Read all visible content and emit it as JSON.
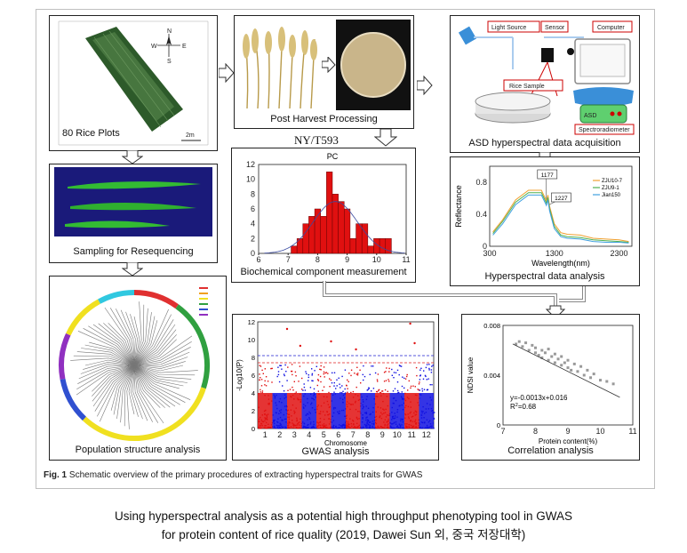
{
  "panels": {
    "rice_plots": "80 Rice Plots",
    "sampling": "Sampling for Resequencing",
    "post_harvest": "Post Harvest Processing",
    "asd": "ASD hyperspectral data acquisition",
    "standard": "NY/T593",
    "biochem": "Biochemical component measurement",
    "hyperspectral": "Hyperspectral data analysis",
    "population": "Population structure analysis",
    "gwas": "GWAS analysis",
    "correlation": "Correlation analysis"
  },
  "asd_labels": {
    "light_source": "Light Source",
    "sensor": "Sensor",
    "computer": "Computer",
    "rice_sample": "Rice Sample",
    "asd": "ASD",
    "spectroradiometer": "Spectroradiometer"
  },
  "map_labels": {
    "scale": "2m",
    "north": "N",
    "south": "S",
    "east": "E",
    "west": "W"
  },
  "figure_caption_bold": "Fig. 1",
  "figure_caption_text": "Schematic overview of the primary procedures of extracting hyperspectral traits for GWAS",
  "caption_line1": "Using hyperspectral analysis as a potential high throughput phenotyping tool in GWAS",
  "caption_line2": "for protein content of rice quality (2019, Dawei Sun 외, 중국 저장대학)",
  "chart_data": [
    {
      "type": "bar",
      "title": "PC",
      "x_ticks": [
        "6",
        "7",
        "8",
        "9",
        "10",
        "11"
      ],
      "y_ticks": [
        "0",
        "2",
        "4",
        "6",
        "8",
        "10",
        "12"
      ],
      "xlim": [
        6,
        11
      ],
      "ylim": [
        0,
        12
      ],
      "bins": [
        {
          "x": 7.2,
          "count": 1
        },
        {
          "x": 7.4,
          "count": 2
        },
        {
          "x": 7.6,
          "count": 4
        },
        {
          "x": 7.8,
          "count": 5
        },
        {
          "x": 8.0,
          "count": 6
        },
        {
          "x": 8.2,
          "count": 5
        },
        {
          "x": 8.4,
          "count": 11
        },
        {
          "x": 8.6,
          "count": 8
        },
        {
          "x": 8.8,
          "count": 7
        },
        {
          "x": 9.0,
          "count": 6
        },
        {
          "x": 9.2,
          "count": 2
        },
        {
          "x": 9.4,
          "count": 4
        },
        {
          "x": 9.6,
          "count": 4
        },
        {
          "x": 9.8,
          "count": 1
        },
        {
          "x": 10.0,
          "count": 2
        },
        {
          "x": 10.2,
          "count": 2
        },
        {
          "x": 10.4,
          "count": 2
        }
      ],
      "bar_color": "#e01010"
    },
    {
      "type": "line",
      "xlabel": "Wavelength(nm)",
      "ylabel": "Reflectance",
      "x_ticks": [
        "300",
        "1300",
        "2300"
      ],
      "y_ticks": [
        "0",
        "0.4",
        "0.8"
      ],
      "xlim": [
        300,
        2500
      ],
      "ylim": [
        0,
        1.0
      ],
      "annotations": [
        "1177",
        "1227"
      ],
      "series": [
        {
          "name": "ZJU10-7",
          "color": "#f0a030",
          "points": [
            [
              350,
              0.18
            ],
            [
              500,
              0.33
            ],
            [
              700,
              0.58
            ],
            [
              900,
              0.7
            ],
            [
              1100,
              0.7
            ],
            [
              1177,
              0.57
            ],
            [
              1200,
              0.64
            ],
            [
              1227,
              0.5
            ],
            [
              1300,
              0.28
            ],
            [
              1400,
              0.17
            ],
            [
              1500,
              0.15
            ],
            [
              1700,
              0.14
            ],
            [
              1900,
              0.1
            ],
            [
              2100,
              0.09
            ],
            [
              2300,
              0.08
            ],
            [
              2450,
              0.06
            ]
          ]
        },
        {
          "name": "ZJU9-1",
          "color": "#50b050",
          "points": [
            [
              350,
              0.16
            ],
            [
              500,
              0.31
            ],
            [
              700,
              0.55
            ],
            [
              900,
              0.67
            ],
            [
              1100,
              0.67
            ],
            [
              1177,
              0.54
            ],
            [
              1200,
              0.61
            ],
            [
              1227,
              0.47
            ],
            [
              1300,
              0.25
            ],
            [
              1400,
              0.14
            ],
            [
              1500,
              0.12
            ],
            [
              1700,
              0.11
            ],
            [
              1900,
              0.08
            ],
            [
              2100,
              0.07
            ],
            [
              2300,
              0.06
            ],
            [
              2450,
              0.05
            ]
          ]
        },
        {
          "name": "Jian150",
          "color": "#40a0e0",
          "points": [
            [
              350,
              0.14
            ],
            [
              500,
              0.28
            ],
            [
              700,
              0.52
            ],
            [
              900,
              0.64
            ],
            [
              1100,
              0.64
            ],
            [
              1177,
              0.51
            ],
            [
              1200,
              0.58
            ],
            [
              1227,
              0.44
            ],
            [
              1300,
              0.22
            ],
            [
              1400,
              0.12
            ],
            [
              1500,
              0.1
            ],
            [
              1700,
              0.09
            ],
            [
              1900,
              0.06
            ],
            [
              2100,
              0.05
            ],
            [
              2300,
              0.05
            ],
            [
              2450,
              0.04
            ]
          ]
        }
      ]
    },
    {
      "type": "scatter",
      "xlabel": "Protein content(%)",
      "ylabel": "NDSI value",
      "x_ticks": [
        "7",
        "8",
        "9",
        "10",
        "11"
      ],
      "y_ticks": [
        "0",
        "0.004",
        "0.008"
      ],
      "xlim": [
        7,
        11
      ],
      "ylim": [
        0,
        0.008
      ],
      "equation": "y=-0.0013x+0.016",
      "r2_prefix": "R",
      "r2_suffix": "=0.68",
      "fit": {
        "slope": -0.0013,
        "intercept": 0.016
      },
      "points": [
        [
          7.4,
          0.0065
        ],
        [
          7.5,
          0.0067
        ],
        [
          7.6,
          0.0063
        ],
        [
          7.7,
          0.0066
        ],
        [
          7.8,
          0.006
        ],
        [
          7.9,
          0.0064
        ],
        [
          8.0,
          0.0058
        ],
        [
          8.0,
          0.0062
        ],
        [
          8.1,
          0.0056
        ],
        [
          8.2,
          0.006
        ],
        [
          8.2,
          0.0054
        ],
        [
          8.3,
          0.0058
        ],
        [
          8.4,
          0.0052
        ],
        [
          8.4,
          0.0061
        ],
        [
          8.5,
          0.0055
        ],
        [
          8.6,
          0.005
        ],
        [
          8.6,
          0.0057
        ],
        [
          8.7,
          0.0053
        ],
        [
          8.8,
          0.0048
        ],
        [
          8.8,
          0.0055
        ],
        [
          8.9,
          0.005
        ],
        [
          9.0,
          0.0046
        ],
        [
          9.0,
          0.0052
        ],
        [
          9.1,
          0.0044
        ],
        [
          9.2,
          0.0049
        ],
        [
          9.3,
          0.0043
        ],
        [
          9.4,
          0.0047
        ],
        [
          9.5,
          0.004
        ],
        [
          9.6,
          0.0044
        ],
        [
          9.7,
          0.0038
        ],
        [
          9.8,
          0.0041
        ],
        [
          10.0,
          0.0036
        ],
        [
          10.2,
          0.0035
        ],
        [
          10.4,
          0.0033
        ]
      ]
    },
    {
      "type": "scatter",
      "xlabel": "Chromosome",
      "ylabel": "-Log10(P)",
      "x_ticks": [
        "1",
        "2",
        "3",
        "4",
        "5",
        "6",
        "7",
        "8",
        "9",
        "10",
        "11",
        "12"
      ],
      "y_ticks": [
        "0",
        "2",
        "4",
        "6",
        "8",
        "10",
        "12"
      ],
      "ylim": [
        0,
        12
      ],
      "threshold_upper": 8.2,
      "threshold_lower": 7.4,
      "colors": [
        "#e01010",
        "#1010e0"
      ]
    }
  ]
}
